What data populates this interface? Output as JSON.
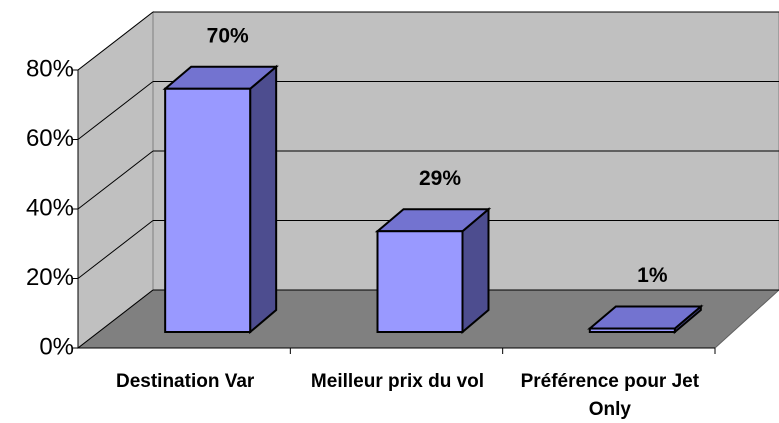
{
  "chart_data": {
    "type": "bar3d",
    "categories": [
      "Destination Var",
      "Meilleur prix du vol",
      "Préférence pour Jet Only"
    ],
    "values": [
      70,
      29,
      1
    ],
    "value_labels": [
      "70%",
      "29%",
      "1%"
    ],
    "color": "#9999ff",
    "ylim": [
      0,
      80
    ],
    "yticks": [
      {
        "value": 0,
        "label": "0%"
      },
      {
        "value": 20,
        "label": "20%"
      },
      {
        "value": 40,
        "label": "40%"
      },
      {
        "value": 60,
        "label": "60%"
      },
      {
        "value": 80,
        "label": "80%"
      }
    ],
    "grid": true
  }
}
